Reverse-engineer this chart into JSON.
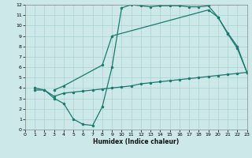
{
  "line1_x": [
    1,
    2,
    3,
    4,
    5,
    6,
    7,
    8,
    9,
    10,
    11,
    12,
    13,
    14,
    15,
    16,
    17,
    18,
    19,
    20,
    21,
    22,
    23
  ],
  "line1_y": [
    4.0,
    3.8,
    3.0,
    2.5,
    1.0,
    0.5,
    0.4,
    2.2,
    6.0,
    11.7,
    12.0,
    11.9,
    11.8,
    11.9,
    11.9,
    11.9,
    11.8,
    11.8,
    11.9,
    10.8,
    9.2,
    7.8,
    5.5
  ],
  "line2_x": [
    1,
    2,
    3,
    4,
    5,
    6,
    7,
    8,
    9,
    10,
    11,
    12,
    13,
    14,
    15,
    16,
    17,
    18,
    19,
    20,
    21,
    22,
    23
  ],
  "line2_y": [
    3.8,
    3.8,
    3.2,
    3.5,
    3.6,
    3.7,
    3.8,
    3.9,
    4.0,
    4.1,
    4.2,
    4.4,
    4.5,
    4.6,
    4.7,
    4.8,
    4.9,
    5.0,
    5.1,
    5.2,
    5.3,
    5.4,
    5.5
  ],
  "line3_x": [
    3,
    4,
    8,
    9,
    19,
    20,
    21,
    22,
    23
  ],
  "line3_y": [
    3.8,
    4.2,
    6.2,
    9.0,
    11.5,
    10.8,
    9.3,
    8.0,
    5.5
  ],
  "color": "#1a7a6e",
  "bg_color": "#cce8e8",
  "grid_color": "#aad0d0",
  "xlabel": "Humidex (Indice chaleur)",
  "xlim": [
    0,
    23
  ],
  "ylim": [
    0,
    12
  ],
  "xticks": [
    0,
    1,
    2,
    3,
    4,
    5,
    6,
    7,
    8,
    9,
    10,
    11,
    12,
    13,
    14,
    15,
    16,
    17,
    18,
    19,
    20,
    21,
    22,
    23
  ],
  "yticks": [
    0,
    1,
    2,
    3,
    4,
    5,
    6,
    7,
    8,
    9,
    10,
    11,
    12
  ]
}
